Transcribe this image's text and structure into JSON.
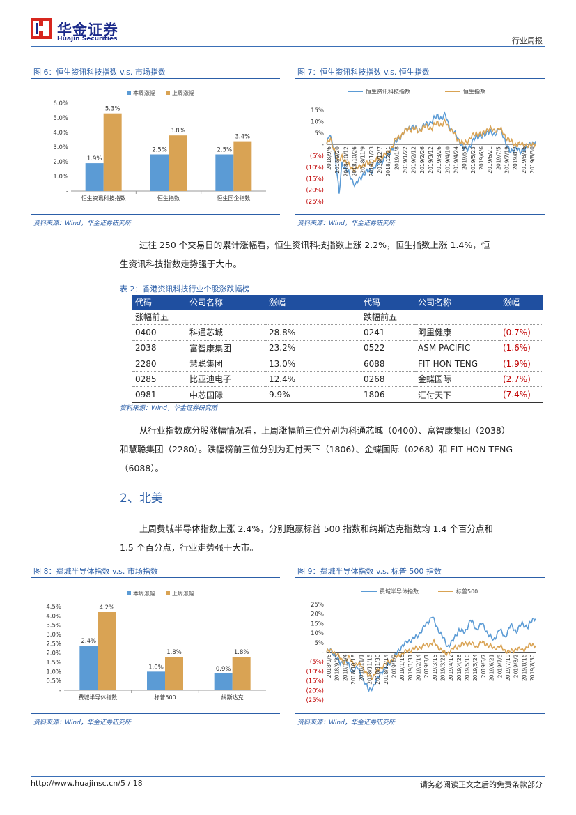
{
  "header": {
    "brand_cn": "华金证券",
    "brand_en": "Huajin Securities",
    "report_type": "行业周报",
    "colors": {
      "brand_blue": "#1b2a8a",
      "brand_red": "#d7261e",
      "accent": "#3a6fb6"
    }
  },
  "fig6": {
    "title": "图 6：恒生资讯科技指数 v.s. 市场指数",
    "source": "资料来源：Wind，华金证券研究所",
    "chart_data": {
      "type": "bar",
      "categories": [
        "恒生资讯科技指数",
        "恒生指数",
        "恒生国企指数"
      ],
      "series": [
        {
          "name": "本周涨幅",
          "values": [
            1.9,
            2.5,
            2.5
          ],
          "labels": [
            "1.9%",
            "2.5%",
            "2.5%"
          ],
          "color": "#5b9bd5"
        },
        {
          "name": "上周涨幅",
          "values": [
            5.3,
            3.8,
            3.4
          ],
          "labels": [
            "5.3%",
            "3.8%",
            "3.4%"
          ],
          "color": "#d9a354"
        }
      ],
      "ylim": [
        0,
        6
      ],
      "yticks": [
        "-",
        "1.0%",
        "2.0%",
        "3.0%",
        "4.0%",
        "5.0%",
        "6.0%"
      ]
    }
  },
  "fig7": {
    "title": "图 7：恒生资讯科技指数 v.s. 恒生指数",
    "source": "资料来源：Wind，华金证券研究所",
    "chart_data": {
      "type": "line",
      "legend": [
        "恒生资讯科技指数",
        "恒生指数"
      ],
      "colors": [
        "#5b9bd5",
        "#d9a354"
      ],
      "ylim": [
        -25,
        15
      ],
      "yticks": [
        "15%",
        "10%",
        "5%",
        "-",
        "(5%)",
        "(10%)",
        "(15%)",
        "(20%)",
        "(25%)"
      ],
      "xticks": [
        "2018/9/6",
        "2018/9/20",
        "2018/10/12",
        "2018/10/26",
        "2018/11/9",
        "2018/11/23",
        "2018/12/7",
        "2018/12/21",
        "2019/1/8",
        "2019/1/22",
        "2019/2/12",
        "2019/2/26",
        "2019/3/12",
        "2019/3/26",
        "2019/4/10",
        "2019/4/24",
        "2019/5/9",
        "2019/5/23",
        "2019/6/6",
        "2019/6/21",
        "2019/7/5",
        "2019/7/19",
        "2019/8/2",
        "2019/8/16",
        "2019/8/30"
      ],
      "series": [
        {
          "name": "恒生资讯科技指数",
          "keypoints": [
            [
              0,
              0
            ],
            [
              3,
              4
            ],
            [
              6,
              1
            ],
            [
              9,
              -5
            ],
            [
              13,
              -22
            ],
            [
              16,
              -8
            ],
            [
              22,
              -12
            ],
            [
              30,
              -18
            ],
            [
              38,
              -13
            ],
            [
              48,
              -11
            ],
            [
              58,
              -7
            ],
            [
              64,
              -5
            ],
            [
              72,
              1
            ],
            [
              80,
              5
            ],
            [
              88,
              8
            ],
            [
              96,
              6
            ],
            [
              104,
              9
            ],
            [
              110,
              10
            ],
            [
              116,
              13
            ],
            [
              120,
              11
            ],
            [
              124,
              13
            ],
            [
              130,
              6
            ],
            [
              136,
              4
            ],
            [
              142,
              -2
            ],
            [
              150,
              -1
            ],
            [
              156,
              4
            ],
            [
              162,
              3
            ],
            [
              168,
              6
            ],
            [
              174,
              4
            ],
            [
              180,
              7
            ],
            [
              186,
              2
            ],
            [
              192,
              -4
            ],
            [
              198,
              -1
            ],
            [
              202,
              -4
            ],
            [
              206,
              -2
            ],
            [
              210,
              -1
            ],
            [
              214,
              0
            ],
            [
              218,
              2
            ]
          ]
        },
        {
          "name": "恒生指数",
          "keypoints": [
            [
              0,
              0
            ],
            [
              4,
              2
            ],
            [
              8,
              -2
            ],
            [
              12,
              -8
            ],
            [
              16,
              -5
            ],
            [
              22,
              -9
            ],
            [
              30,
              -11
            ],
            [
              38,
              -9
            ],
            [
              48,
              -8
            ],
            [
              58,
              -5
            ],
            [
              64,
              -4
            ],
            [
              72,
              2
            ],
            [
              80,
              5
            ],
            [
              86,
              7
            ],
            [
              96,
              6
            ],
            [
              104,
              8
            ],
            [
              110,
              7
            ],
            [
              116,
              10
            ],
            [
              120,
              8
            ],
            [
              124,
              10
            ],
            [
              130,
              6
            ],
            [
              136,
              3
            ],
            [
              142,
              0
            ],
            [
              148,
              2
            ],
            [
              156,
              5
            ],
            [
              162,
              4
            ],
            [
              168,
              7
            ],
            [
              174,
              6
            ],
            [
              180,
              7
            ],
            [
              186,
              4
            ],
            [
              192,
              1
            ],
            [
              198,
              0
            ],
            [
              206,
              0
            ],
            [
              212,
              -1
            ],
            [
              218,
              1
            ]
          ]
        }
      ]
    }
  },
  "para1": {
    "line1": "过往 250 个交易日的累计涨幅看，恒生资讯科技指数上涨 2.2%，恒生指数上涨 1.4%，恒",
    "line2": "生资讯科技指数走势强于大市。"
  },
  "table2": {
    "title": "表 2：香港资讯科技行业个股涨跌幅榜",
    "headers": [
      "代码",
      "公司名称",
      "涨幅",
      "代码",
      "公司名称",
      "涨幅"
    ],
    "gainers_label": "涨幅前五",
    "losers_label": "跌幅前五",
    "rows": [
      [
        "0400",
        "科通芯城",
        "28.8%",
        "0241",
        "阿里健康",
        "(0.7%)"
      ],
      [
        "2038",
        "富智康集团",
        "23.2%",
        "0522",
        "ASM PACIFIC",
        "(1.6%)"
      ],
      [
        "2280",
        "慧聪集团",
        "13.0%",
        "6088",
        "FIT HON TENG",
        "(1.9%)"
      ],
      [
        "0285",
        "比亚迪电子",
        "12.4%",
        "0268",
        "金蝶国际",
        "(2.7%)"
      ],
      [
        "0981",
        "中芯国际",
        "9.9%",
        "1806",
        "汇付天下",
        "(7.4%)"
      ]
    ],
    "source": "资料来源：Wind，华金证券研究所"
  },
  "para2": {
    "line1": "从行业指数成分股涨幅情况看，上周涨幅前三位分别为科通芯城（0400）、富智康集团（2038）",
    "line2": "和慧聪集团（2280）。跌幅榜前三位分别为汇付天下（1806）、金蝶国际（0268）和 FIT HON TENG",
    "line3": "（6088）。"
  },
  "section": {
    "heading": "2、北美"
  },
  "para3": {
    "line1": "上周费城半导体指数上涨 2.4%，分别跑赢标普 500 指数和纳斯达克指数均 1.4 个百分点和",
    "line2": "1.5 个百分点，行业走势强于大市。"
  },
  "fig8": {
    "title": "图 8：费城半导体指数 v.s. 市场指数",
    "source": "资料来源：Wind，华金证券研究所",
    "chart_data": {
      "type": "bar",
      "categories": [
        "费城半导体指数",
        "标普500",
        "纳斯达克"
      ],
      "series": [
        {
          "name": "本周涨幅",
          "values": [
            2.4,
            1.0,
            0.9
          ],
          "labels": [
            "2.4%",
            "1.0%",
            "0.9%"
          ],
          "color": "#5b9bd5"
        },
        {
          "name": "上周涨幅",
          "values": [
            4.2,
            1.8,
            1.8
          ],
          "labels": [
            "4.2%",
            "1.8%",
            "1.8%"
          ],
          "color": "#d9a354"
        }
      ],
      "ylim": [
        0,
        4.5
      ],
      "yticks": [
        "-",
        "0.5%",
        "1.0%",
        "1.5%",
        "2.0%",
        "2.5%",
        "3.0%",
        "3.5%",
        "4.0%",
        "4.5%"
      ]
    }
  },
  "fig9": {
    "title": "图 9：费城半导体指数 v.s. 标普 500 指数",
    "source": "资料来源：Wind，华金证券研究所",
    "chart_data": {
      "type": "line",
      "legend": [
        "费城半导体指数",
        "标普500"
      ],
      "colors": [
        "#5b9bd5",
        "#d9a354"
      ],
      "ylim": [
        -25,
        25
      ],
      "yticks": [
        "25%",
        "20%",
        "15%",
        "10%",
        "5%",
        "-",
        "(5%)",
        "(10%)",
        "(15%)",
        "(20%)",
        "(25%)"
      ],
      "xticks": [
        "2018/9/6",
        "2018/9/20",
        "2018/10/4",
        "2018/10/18",
        "2018/11/1",
        "2018/11/15",
        "2018/11/30",
        "2018/12/14",
        "2019/1/2",
        "2019/1/16",
        "2019/1/31",
        "2019/2/14",
        "2019/3/1",
        "2019/3/15",
        "2019/3/29",
        "2019/4/12",
        "2019/4/26",
        "2019/5/10",
        "2019/5/24",
        "2019/6/7",
        "2019/6/21",
        "2019/7/5",
        "2019/7/19",
        "2019/8/2",
        "2019/8/16",
        "2019/8/30"
      ],
      "series": [
        {
          "name": "费城半导体指数",
          "keypoints": [
            [
              0,
              0
            ],
            [
              4,
              1
            ],
            [
              8,
              -1
            ],
            [
              14,
              -6
            ],
            [
              20,
              -4
            ],
            [
              26,
              -10
            ],
            [
              32,
              -8
            ],
            [
              38,
              -14
            ],
            [
              44,
              -20
            ],
            [
              50,
              -17
            ],
            [
              56,
              -11
            ],
            [
              62,
              -8
            ],
            [
              70,
              -3
            ],
            [
              78,
              3
            ],
            [
              86,
              6
            ],
            [
              94,
              8
            ],
            [
              100,
              12
            ],
            [
              106,
              16
            ],
            [
              110,
              19
            ],
            [
              114,
              14
            ],
            [
              120,
              9
            ],
            [
              126,
              3
            ],
            [
              132,
              6
            ],
            [
              138,
              12
            ],
            [
              144,
              10
            ],
            [
              150,
              17
            ],
            [
              156,
              12
            ],
            [
              162,
              15
            ],
            [
              168,
              10
            ],
            [
              174,
              6
            ],
            [
              180,
              12
            ],
            [
              186,
              8
            ],
            [
              192,
              14
            ],
            [
              198,
              11
            ],
            [
              204,
              15
            ],
            [
              210,
              13
            ],
            [
              216,
              18
            ]
          ]
        },
        {
          "name": "标普500",
          "keypoints": [
            [
              0,
              0
            ],
            [
              6,
              1
            ],
            [
              12,
              -2
            ],
            [
              18,
              -5
            ],
            [
              24,
              -3
            ],
            [
              30,
              -7
            ],
            [
              36,
              -6
            ],
            [
              42,
              -12
            ],
            [
              48,
              -13
            ],
            [
              54,
              -9
            ],
            [
              62,
              -6
            ],
            [
              70,
              -3
            ],
            [
              78,
              -1
            ],
            [
              86,
              1
            ],
            [
              94,
              2
            ],
            [
              100,
              3
            ],
            [
              106,
              4
            ],
            [
              112,
              5
            ],
            [
              118,
              2
            ],
            [
              124,
              -1
            ],
            [
              130,
              1
            ],
            [
              136,
              3
            ],
            [
              142,
              4
            ],
            [
              148,
              5
            ],
            [
              156,
              3
            ],
            [
              162,
              5
            ],
            [
              168,
              4
            ],
            [
              174,
              2
            ],
            [
              180,
              3
            ],
            [
              186,
              1
            ],
            [
              192,
              0
            ],
            [
              198,
              2
            ],
            [
              204,
              1
            ],
            [
              210,
              3
            ],
            [
              216,
              4
            ]
          ]
        }
      ]
    }
  },
  "footer": {
    "url": "http://www.huajinsc.cn/5 / 18",
    "disclaimer": "请务必阅读正文之后的免责条款部分"
  }
}
